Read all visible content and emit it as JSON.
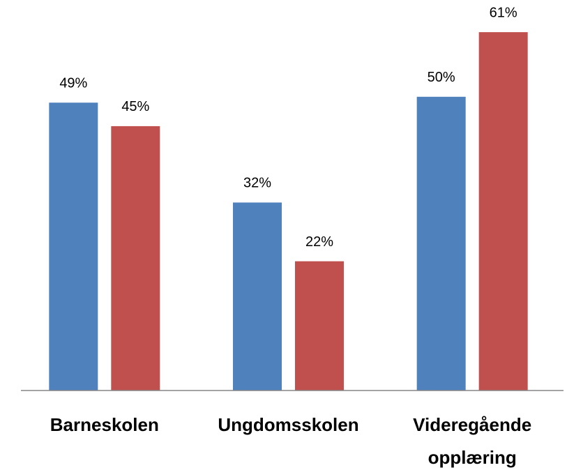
{
  "chart_data": {
    "type": "bar",
    "categories": [
      "Barneskolen",
      "Ungdomsskolen",
      "Videregående opplæring"
    ],
    "series": [
      {
        "color": "#4f81bd",
        "values": [
          49,
          32,
          50
        ],
        "value_labels": [
          "49%",
          "32%",
          "50%"
        ]
      },
      {
        "color": "#c0504d",
        "values": [
          45,
          22,
          61
        ],
        "value_labels": [
          "45%",
          "22%",
          "61%"
        ]
      }
    ],
    "ylim": [
      0,
      66
    ]
  }
}
